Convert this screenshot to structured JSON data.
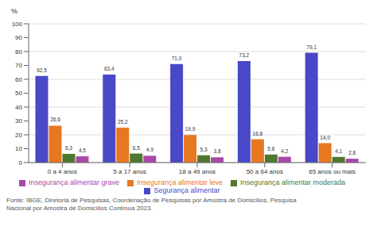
{
  "chart_data": {
    "type": "bar",
    "y_label": "%",
    "categories": [
      "0 a 4 anos",
      "5 a 17 anos",
      "18 a 49 anos",
      "50 a 64 anos",
      "65 anos ou mais"
    ],
    "series": [
      {
        "name": "Segurança alimentar",
        "color": "#4848C8",
        "values": [
          62.5,
          63.4,
          71.0,
          73.2,
          79.1
        ],
        "value_labels": [
          "62,5",
          "63,4",
          "71,0",
          "73,2",
          "79,1"
        ]
      },
      {
        "name": "Insegurança alimentar leve",
        "color": "#E87820",
        "values": [
          26.6,
          25.2,
          19.9,
          16.8,
          14.0
        ],
        "value_labels": [
          "26,6",
          "25,2",
          "19,9",
          "16,8",
          "14,0"
        ]
      },
      {
        "name": "Insegurança alimentar moderada",
        "color": "#507830",
        "values": [
          6.3,
          6.5,
          5.3,
          5.8,
          4.1
        ],
        "value_labels": [
          "6,3",
          "6,5",
          "5,3",
          "5,8",
          "4,1"
        ]
      },
      {
        "name": "Insegurança alimentar grave",
        "color": "#A848A8",
        "values": [
          4.5,
          4.9,
          3.8,
          4.2,
          2.8
        ],
        "value_labels": [
          "4,5",
          "4,9",
          "3,8",
          "4,2",
          "2,8"
        ]
      }
    ],
    "ylim": [
      0,
      100
    ],
    "yticks": [
      0,
      10,
      20,
      30,
      40,
      50,
      60,
      70,
      80,
      90,
      100
    ],
    "grid": true,
    "legend": "bottom",
    "data_labels": true,
    "annotations": [
      "Fonte: IBGE, Diretoria de Pesquisas, Coordenação de Pesquisas por Amostra de Domicílios, Pesquisa\nNacional por Amostra de Domicílios Contínua 2023."
    ]
  }
}
